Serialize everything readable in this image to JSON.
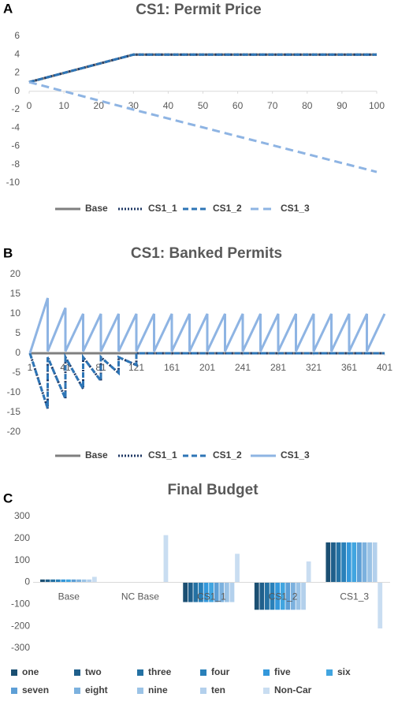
{
  "chart_data": [
    {
      "type": "line",
      "panel": "A",
      "title": "CS1: Permit Price",
      "x": [
        0,
        30,
        100
      ],
      "series": [
        {
          "name": "Base",
          "color": "#7f7f7f",
          "dash": "solid",
          "values": [
            1,
            4,
            4
          ]
        },
        {
          "name": "CS1_1",
          "color": "#1f3864",
          "dash": "dotted",
          "values": [
            1,
            4,
            4
          ]
        },
        {
          "name": "CS1_2",
          "color": "#2e75b6",
          "dash": "dashed",
          "values": [
            1,
            4,
            4
          ]
        },
        {
          "name": "CS1_3",
          "color": "#8eb4e3",
          "dash": "longdash",
          "values": [
            1,
            -2,
            -8.8
          ]
        }
      ],
      "xlim": [
        0,
        100
      ],
      "xticks": [
        0,
        10,
        20,
        30,
        40,
        50,
        60,
        70,
        80,
        90,
        100
      ],
      "ylim": [
        -10,
        6
      ],
      "yticks": [
        -10,
        -8,
        -6,
        -4,
        -2,
        0,
        2,
        4,
        6
      ],
      "grid": false,
      "legend": "bottom"
    },
    {
      "type": "line",
      "panel": "B",
      "title": "CS1: Banked Permits",
      "x": [
        1,
        21,
        21,
        41,
        41,
        61,
        61,
        81,
        81,
        101,
        101,
        121,
        121,
        141,
        141,
        161,
        161,
        181,
        181,
        201,
        201,
        221,
        221,
        241,
        241,
        261,
        261,
        281,
        281,
        301,
        301,
        321,
        321,
        341,
        341,
        361,
        361,
        381,
        381,
        401
      ],
      "series": [
        {
          "name": "Base",
          "color": "#7f7f7f",
          "dash": "solid",
          "values": [
            0,
            0,
            0,
            0,
            0,
            0,
            0,
            0,
            0,
            0,
            0,
            0,
            0,
            0,
            0,
            0,
            0,
            0,
            0,
            0,
            0,
            0,
            0,
            0,
            0,
            0,
            0,
            0,
            0,
            0,
            0,
            0,
            0,
            0,
            0,
            0,
            0,
            0,
            0,
            0
          ]
        },
        {
          "name": "CS1_1",
          "color": "#1f3864",
          "dash": "dotted",
          "values": [
            0,
            -14,
            -1,
            -11.5,
            -1,
            -9,
            -1,
            -7,
            -1,
            -5,
            -1,
            -3,
            0,
            0,
            0,
            0,
            0,
            0,
            0,
            0,
            0,
            0,
            0,
            0,
            0,
            0,
            0,
            0,
            0,
            0,
            0,
            0,
            0,
            0,
            0,
            0,
            0,
            0,
            0,
            0
          ]
        },
        {
          "name": "CS1_2",
          "color": "#2e75b6",
          "dash": "dashed",
          "values": [
            0,
            -14,
            -1,
            -11.5,
            -1,
            -9,
            -1,
            -7,
            -1,
            -5,
            -1,
            -3,
            0,
            0,
            0,
            0,
            0,
            0,
            0,
            0,
            0,
            0,
            0,
            0,
            0,
            0,
            0,
            0,
            0,
            0,
            0,
            0,
            0,
            0,
            0,
            0,
            0,
            0,
            0,
            0
          ]
        },
        {
          "name": "CS1_3",
          "color": "#8eb4e3",
          "dash": "solid",
          "values": [
            0,
            14,
            0.5,
            11.5,
            0.5,
            10,
            0.5,
            10,
            0.5,
            10,
            0.5,
            10,
            0.5,
            10,
            0.5,
            10,
            0.5,
            10,
            0.5,
            10,
            0.5,
            10,
            0.5,
            10,
            0.5,
            10,
            0.5,
            10,
            0.5,
            10,
            0.5,
            10,
            0.5,
            10,
            0.5,
            10,
            0.5,
            10,
            0.5,
            10
          ]
        }
      ],
      "xlim": [
        1,
        401
      ],
      "xticks": [
        1,
        41,
        81,
        121,
        161,
        201,
        241,
        281,
        321,
        361,
        401
      ],
      "ylim": [
        -20,
        20
      ],
      "yticks": [
        -20,
        -15,
        -10,
        -5,
        0,
        5,
        10,
        15,
        20
      ],
      "grid": false,
      "legend": "bottom"
    },
    {
      "type": "bar",
      "panel": "C",
      "title": "Final Budget",
      "categories": [
        "Base",
        "NC Base",
        "CS1_1",
        "CS1_2",
        "CS1_3"
      ],
      "series": [
        {
          "name": "one",
          "color": "#1b4f72",
          "values": [
            13,
            0,
            -90,
            -125,
            182
          ]
        },
        {
          "name": "two",
          "color": "#1f5f8b",
          "values": [
            13,
            0,
            -90,
            -125,
            182
          ]
        },
        {
          "name": "three",
          "color": "#2471a3",
          "values": [
            13,
            0,
            -90,
            -125,
            182
          ]
        },
        {
          "name": "four",
          "color": "#2980b9",
          "values": [
            13,
            0,
            -90,
            -125,
            182
          ]
        },
        {
          "name": "five",
          "color": "#3498db",
          "values": [
            13,
            0,
            -90,
            -125,
            182
          ]
        },
        {
          "name": "six",
          "color": "#41a5e0",
          "values": [
            13,
            0,
            -90,
            -125,
            182
          ]
        },
        {
          "name": "seven",
          "color": "#5d9fd6",
          "values": [
            13,
            0,
            -90,
            -125,
            182
          ]
        },
        {
          "name": "eight",
          "color": "#7cb1de",
          "values": [
            13,
            0,
            -90,
            -125,
            182
          ]
        },
        {
          "name": "nine",
          "color": "#9bc3e6",
          "values": [
            13,
            0,
            -90,
            -125,
            182
          ]
        },
        {
          "name": "ten",
          "color": "#b3d0ec",
          "values": [
            13,
            0,
            -90,
            -125,
            182
          ]
        },
        {
          "name": "Non-Car",
          "color": "#c9ddf1",
          "values": [
            25,
            215,
            130,
            95,
            -210
          ]
        }
      ],
      "ylim": [
        -300,
        300
      ],
      "yticks": [
        -300,
        -200,
        -100,
        0,
        100,
        200,
        300
      ],
      "grid": false,
      "legend": "bottom"
    }
  ]
}
